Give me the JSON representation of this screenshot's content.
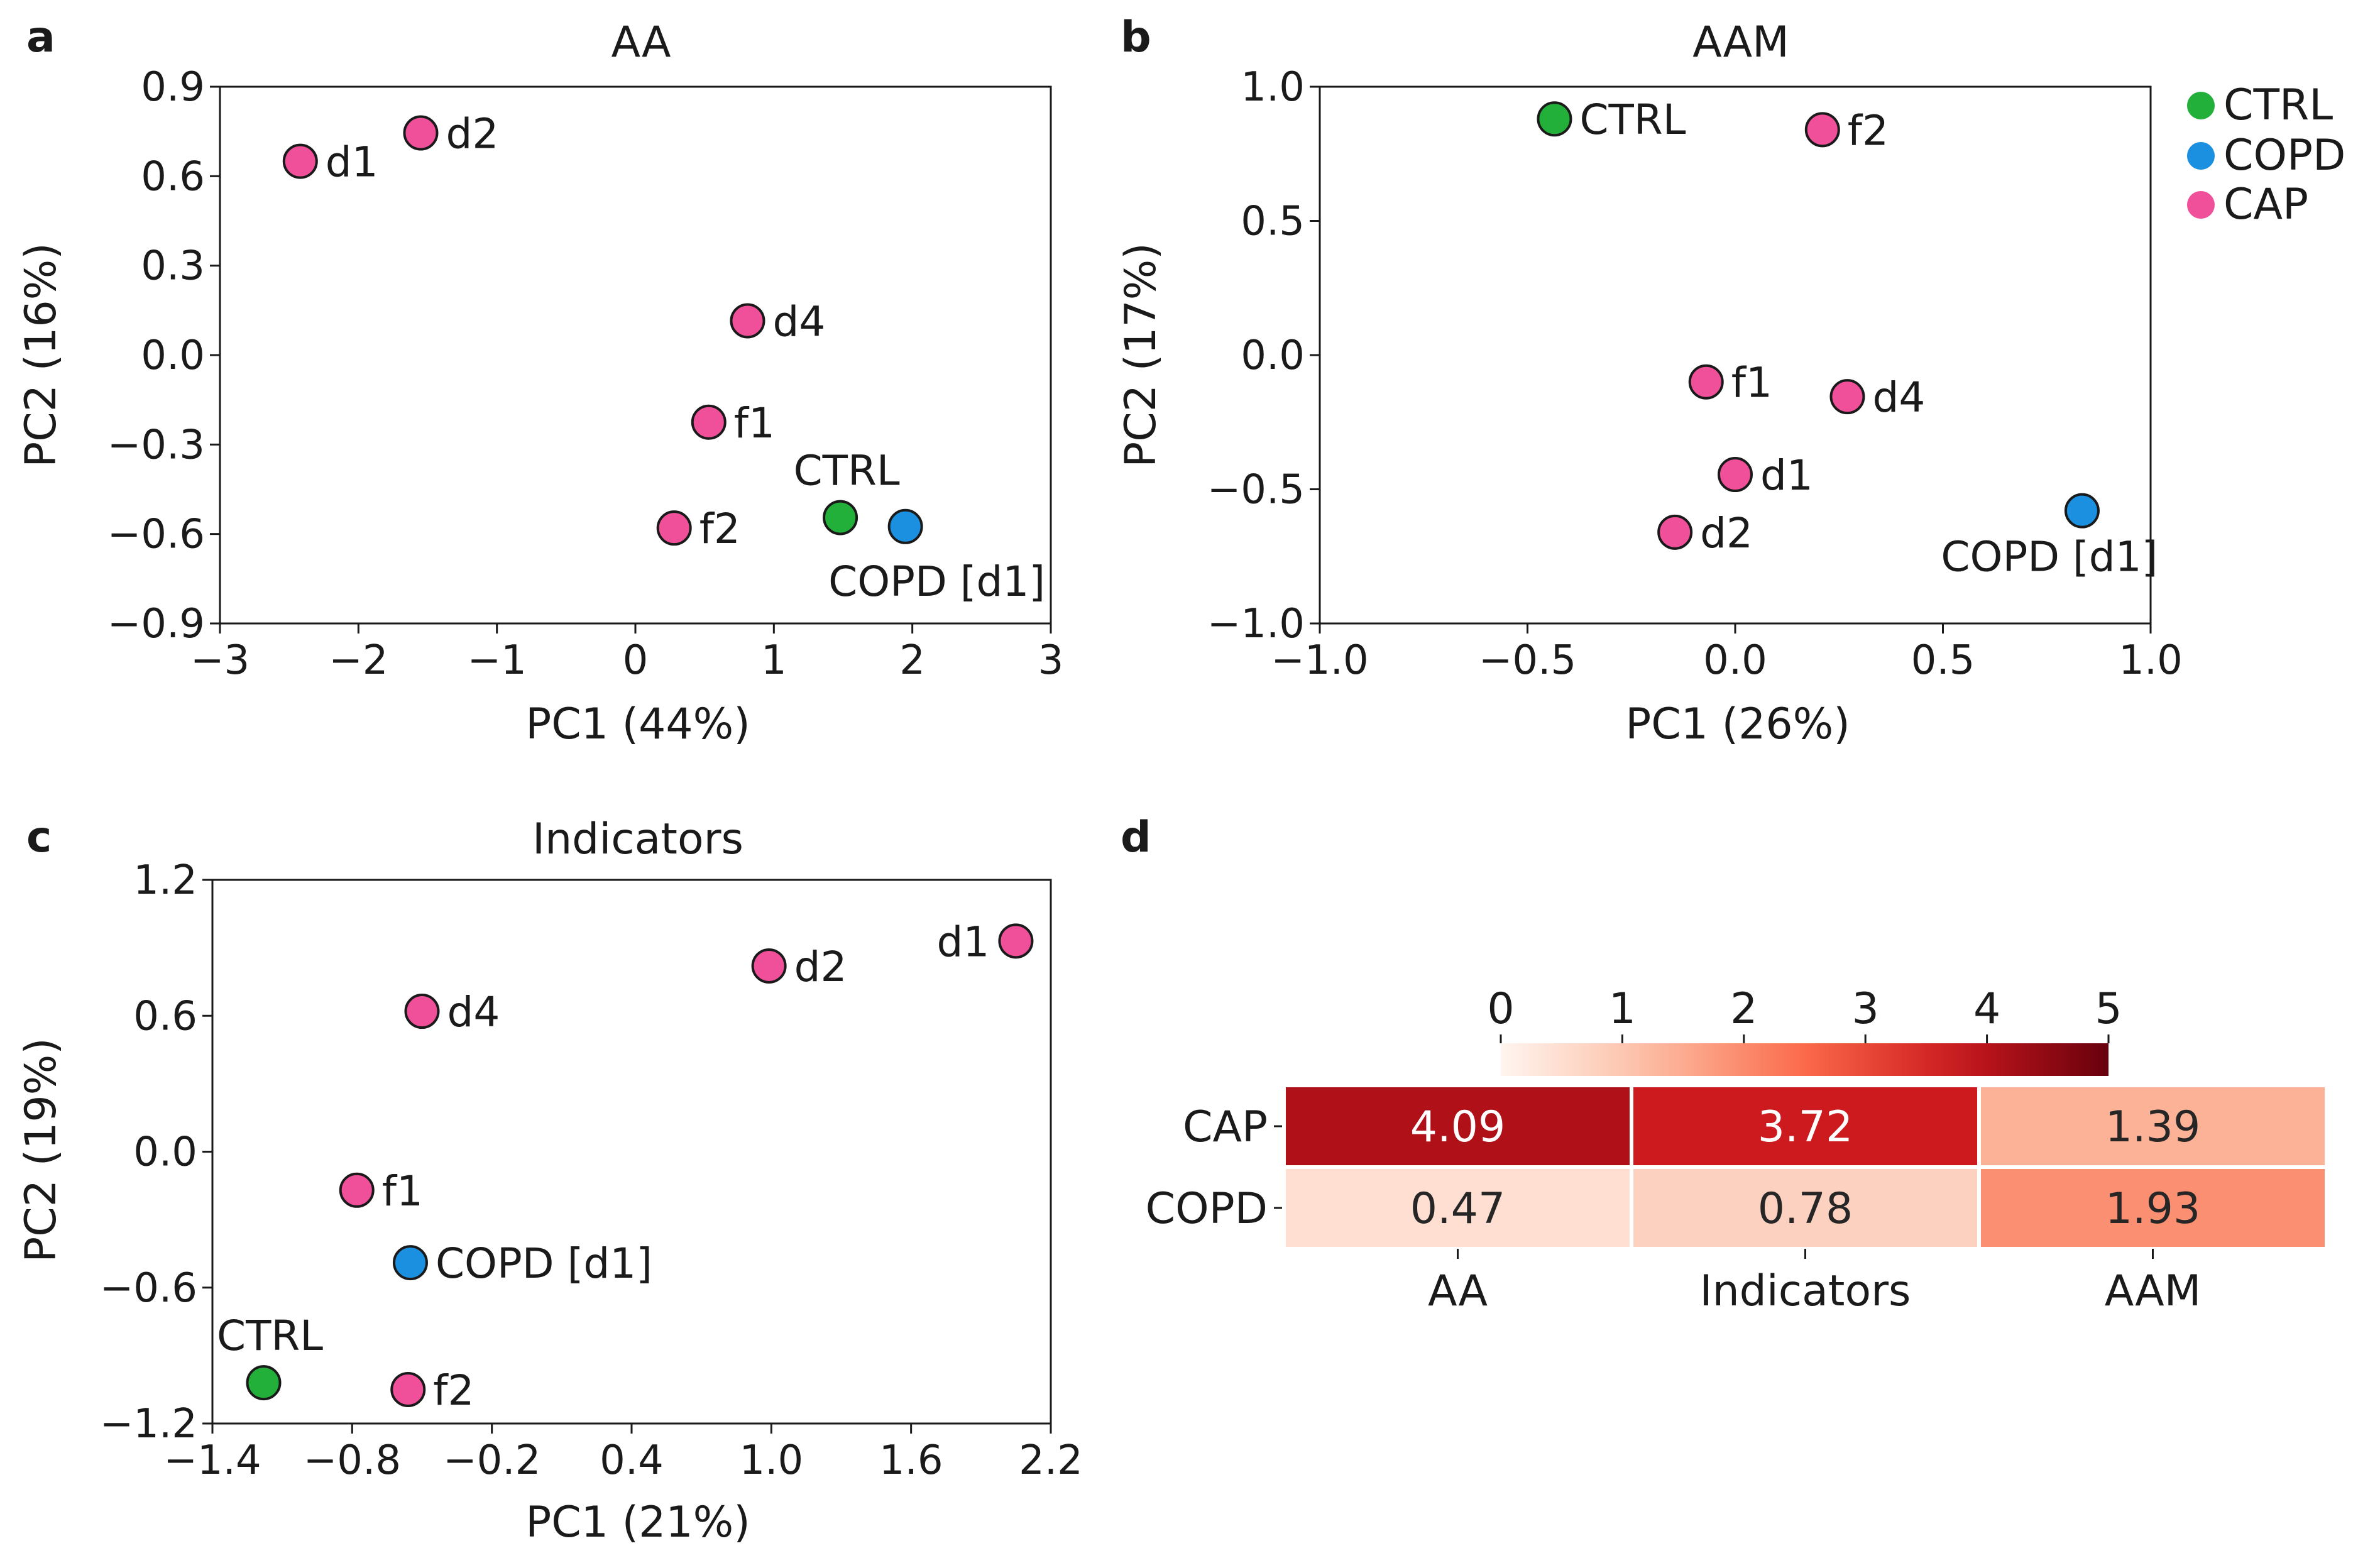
{
  "colors": {
    "CTRL": "#22b03a",
    "COPD": "#1b8fe0",
    "CAP": "#f0509a"
  },
  "legend": [
    {
      "label": "CTRL",
      "group": "CTRL"
    },
    {
      "label": "COPD",
      "group": "COPD"
    },
    {
      "label": "CAP",
      "group": "CAP"
    }
  ],
  "chart_data": [
    {
      "panel": "a",
      "type": "scatter",
      "title": "AA",
      "xlabel": "PC1 (44%)",
      "ylabel": "PC2 (16%)",
      "xlim": [
        -3,
        3
      ],
      "ylim": [
        -0.9,
        0.9
      ],
      "xticks": [
        -3,
        -2,
        -1,
        0,
        1,
        2,
        3
      ],
      "xtick_labels": [
        "−3",
        "−2",
        "−1",
        "0",
        "1",
        "2",
        "3"
      ],
      "yticks": [
        -0.9,
        -0.6,
        -0.3,
        0.0,
        0.3,
        0.6,
        0.9
      ],
      "ytick_labels": [
        "−0.9",
        "−0.6",
        "−0.3",
        "0.0",
        "0.3",
        "0.6",
        "0.9"
      ],
      "points": [
        {
          "label": "d1",
          "group": "CAP",
          "x": -2.42,
          "y": 0.65,
          "label_pos": "right"
        },
        {
          "label": "d2",
          "group": "CAP",
          "x": -1.55,
          "y": 0.745,
          "label_pos": "right"
        },
        {
          "label": "d4",
          "group": "CAP",
          "x": 0.81,
          "y": 0.115,
          "label_pos": "right"
        },
        {
          "label": "f1",
          "group": "CAP",
          "x": 0.53,
          "y": -0.225,
          "label_pos": "right"
        },
        {
          "label": "f2",
          "group": "CAP",
          "x": 0.28,
          "y": -0.58,
          "label_pos": "right"
        },
        {
          "label": "CTRL",
          "group": "CTRL",
          "x": 1.48,
          "y": -0.545,
          "label_pos": "above"
        },
        {
          "label": "COPD [d1]",
          "group": "COPD",
          "x": 1.95,
          "y": -0.575,
          "label_pos": "below"
        }
      ]
    },
    {
      "panel": "b",
      "type": "scatter",
      "title": "AAM",
      "xlabel": "PC1 (26%)",
      "ylabel": "PC2 (17%)",
      "xlim": [
        -1.0,
        1.0
      ],
      "ylim": [
        -1.0,
        1.0
      ],
      "xticks": [
        -1.0,
        -0.5,
        0.0,
        0.5,
        1.0
      ],
      "xtick_labels": [
        "−1.0",
        "−0.5",
        "0.0",
        "0.5",
        "1.0"
      ],
      "yticks": [
        -1.0,
        -0.5,
        0.0,
        0.5,
        1.0
      ],
      "ytick_labels": [
        "−1.0",
        "−0.5",
        "0.0",
        "0.5",
        "1.0"
      ],
      "points": [
        {
          "label": "CTRL",
          "group": "CTRL",
          "x": -0.435,
          "y": 0.88,
          "label_pos": "right"
        },
        {
          "label": "f2",
          "group": "CAP",
          "x": 0.21,
          "y": 0.84,
          "label_pos": "right"
        },
        {
          "label": "f1",
          "group": "CAP",
          "x": -0.07,
          "y": -0.1,
          "label_pos": "right"
        },
        {
          "label": "d4",
          "group": "CAP",
          "x": 0.27,
          "y": -0.155,
          "label_pos": "right"
        },
        {
          "label": "d1",
          "group": "CAP",
          "x": 0.0,
          "y": -0.445,
          "label_pos": "right"
        },
        {
          "label": "d2",
          "group": "CAP",
          "x": -0.145,
          "y": -0.66,
          "label_pos": "right"
        },
        {
          "label": "COPD [d1]",
          "group": "COPD",
          "x": 0.835,
          "y": -0.58,
          "label_pos": "below-left"
        }
      ]
    },
    {
      "panel": "c",
      "type": "scatter",
      "title": "Indicators",
      "xlabel": "PC1 (21%)",
      "ylabel": "PC2 (19%)",
      "xlim": [
        -1.4,
        2.2
      ],
      "ylim": [
        -1.2,
        1.2
      ],
      "xticks": [
        -1.4,
        -0.8,
        -0.2,
        0.4,
        1.0,
        1.6,
        2.2
      ],
      "xtick_labels": [
        "−1.4",
        "−0.8",
        "−0.2",
        "0.4",
        "1.0",
        "1.6",
        "2.2"
      ],
      "yticks": [
        -1.2,
        -0.6,
        0.0,
        0.6,
        1.2
      ],
      "ytick_labels": [
        "−1.2",
        "−0.6",
        "0.0",
        "0.6",
        "1.2"
      ],
      "points": [
        {
          "label": "d1",
          "group": "CAP",
          "x": 2.05,
          "y": 0.93,
          "label_pos": "left"
        },
        {
          "label": "d2",
          "group": "CAP",
          "x": 0.99,
          "y": 0.82,
          "label_pos": "right"
        },
        {
          "label": "d4",
          "group": "CAP",
          "x": -0.5,
          "y": 0.62,
          "label_pos": "right"
        },
        {
          "label": "f1",
          "group": "CAP",
          "x": -0.78,
          "y": -0.17,
          "label_pos": "right"
        },
        {
          "label": "COPD [d1]",
          "group": "COPD",
          "x": -0.55,
          "y": -0.49,
          "label_pos": "right"
        },
        {
          "label": "CTRL",
          "group": "CTRL",
          "x": -1.18,
          "y": -1.02,
          "label_pos": "above"
        },
        {
          "label": "f2",
          "group": "CAP",
          "x": -0.56,
          "y": -1.05,
          "label_pos": "right"
        }
      ]
    },
    {
      "panel": "d",
      "type": "heatmap",
      "rows": [
        "CAP",
        "COPD"
      ],
      "columns": [
        "AA",
        "Indicators",
        "AAM"
      ],
      "values": [
        [
          4.09,
          3.72,
          1.39
        ],
        [
          0.47,
          0.78,
          1.93
        ]
      ],
      "value_labels": [
        [
          "4.09",
          "3.72",
          "1.39"
        ],
        [
          "0.47",
          "0.78",
          "1.93"
        ]
      ],
      "colorbar": {
        "min": 0,
        "max": 5,
        "ticks": [
          0,
          1,
          2,
          3,
          4,
          5
        ],
        "tick_labels": [
          "0",
          "1",
          "2",
          "3",
          "4",
          "5"
        ],
        "colormap": "Reds"
      }
    }
  ]
}
